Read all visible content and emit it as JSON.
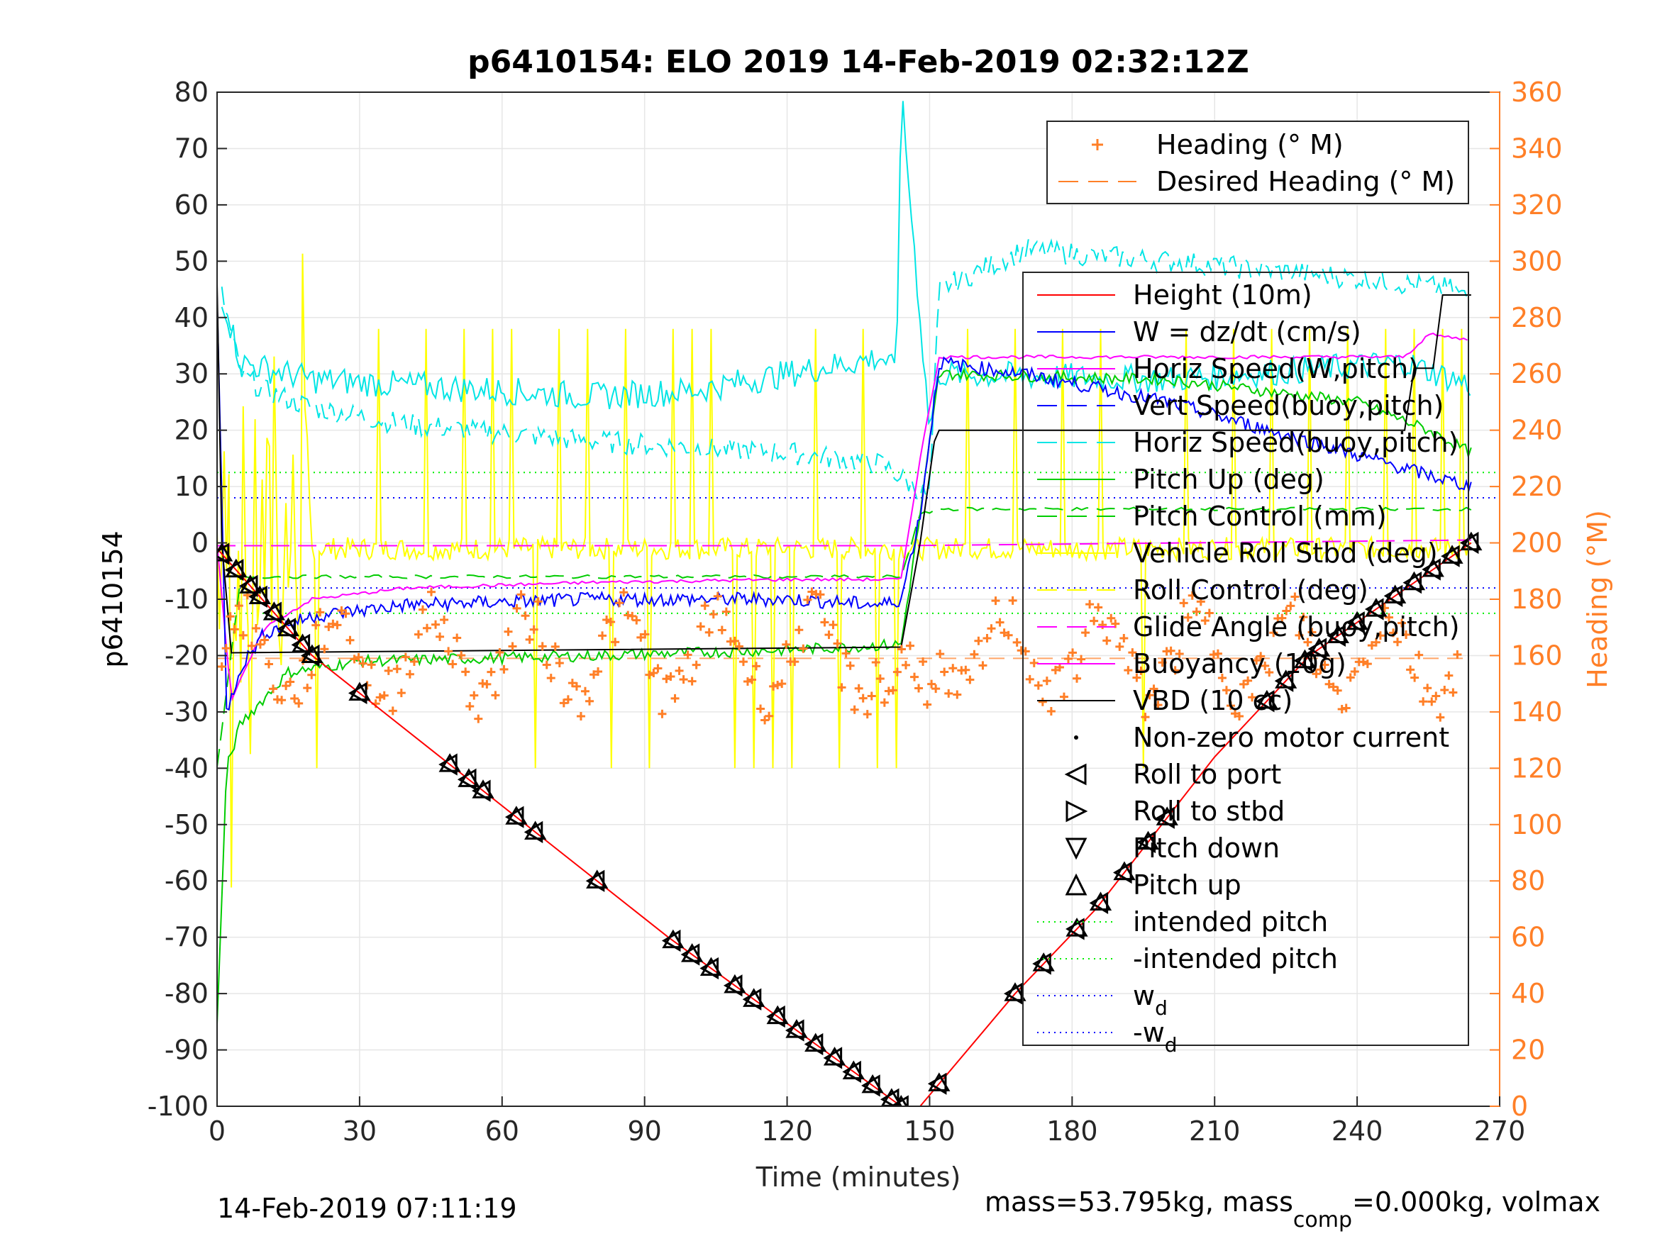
{
  "figure": {
    "title": "p6410154: ELO 2019 14-Feb-2019 02:32:12Z",
    "xlabel": "Time (minutes)",
    "ylabel_left": "p6410154",
    "ylabel_right": "Heading (°M)",
    "footer_left": "14-Feb-2019 07:11:19",
    "footer_right_a": "mass=53.795kg, mass",
    "footer_right_sub": "comp",
    "footer_right_b": "=0.000kg, volmax"
  },
  "chart_data": {
    "type": "line",
    "xlim": [
      0,
      270
    ],
    "ylim_left": [
      -100,
      80
    ],
    "ylim_right": [
      0,
      360
    ],
    "xticks": [
      0,
      30,
      60,
      90,
      120,
      150,
      180,
      210,
      240,
      270
    ],
    "yticks_left": [
      80,
      70,
      60,
      50,
      40,
      30,
      20,
      10,
      0,
      -10,
      -20,
      -30,
      -40,
      -50,
      -60,
      -70,
      -80,
      -90,
      -100
    ],
    "yticks_right": [
      360,
      340,
      320,
      300,
      280,
      260,
      240,
      220,
      200,
      180,
      160,
      140,
      120,
      100,
      80,
      60,
      40,
      20,
      0
    ],
    "grid": true,
    "legend_top": [
      {
        "label": "Heading (° M)",
        "color": "#ff7f27",
        "style": "plus"
      },
      {
        "label": "Desired Heading (° M)",
        "color": "#ff7f27",
        "style": "dash"
      }
    ],
    "legend_main": [
      {
        "label": "Height (10m)",
        "color": "#ff0000",
        "style": "solid"
      },
      {
        "label": "W = dz/dt (cm/s)",
        "color": "#0000ff",
        "style": "solid"
      },
      {
        "label": "Horiz Speed(W,pitch)",
        "color": "#ff00ff",
        "style": "solid"
      },
      {
        "label": "Vert Speed(buoy,pitch)",
        "color": "#0000ff",
        "style": "dash"
      },
      {
        "label": "Horiz Speed(buoy,pitch)",
        "color": "#00e5e5",
        "style": "dash"
      },
      {
        "label": "Pitch Up (deg)",
        "color": "#00cc00",
        "style": "solid"
      },
      {
        "label": "Pitch Control (mm)",
        "color": "#00cc00",
        "style": "dash"
      },
      {
        "label": "Vehicle Roll Stbd (deg)",
        "color": "#ffff00",
        "style": "solid"
      },
      {
        "label": "Roll Control (deg)",
        "color": "#ffff00",
        "style": "dash"
      },
      {
        "label": "Glide Angle (buoy,pitch)",
        "color": "#ff00ff",
        "style": "dash"
      },
      {
        "label": "Buoyancy (10g)",
        "color": "#ff00ff",
        "style": "solid2"
      },
      {
        "label": "VBD (10 cc)",
        "color": "#000000",
        "style": "solid"
      },
      {
        "label": "Non-zero motor current",
        "color": "#000000",
        "style": "dot"
      },
      {
        "label": "Roll to port",
        "color": "#000000",
        "style": "tri-left"
      },
      {
        "label": "Roll to stbd",
        "color": "#000000",
        "style": "tri-right"
      },
      {
        "label": "Pitch down",
        "color": "#000000",
        "style": "tri-down"
      },
      {
        "label": "Pitch up",
        "color": "#000000",
        "style": "tri-up"
      },
      {
        "label": "intended pitch",
        "color": "#00ee00",
        "style": "dotted"
      },
      {
        "label": "-intended pitch",
        "color": "#00ee00",
        "style": "dotted"
      },
      {
        "label": "w",
        "sub": "d",
        "color": "#0000ff",
        "style": "dotted"
      },
      {
        "label": "-w",
        "sub": "d",
        "color": "#0000ff",
        "style": "dotted"
      }
    ],
    "series": {
      "height": {
        "x": [
          0,
          20,
          95,
          144,
          148,
          168,
          185,
          210,
          230,
          264
        ],
        "y": [
          -1,
          -20,
          -70,
          -100,
          -100,
          -80,
          -65,
          -38,
          -20,
          0
        ]
      },
      "w": {
        "x": [
          0,
          2,
          5,
          10,
          20,
          40,
          80,
          120,
          140,
          144,
          148,
          152,
          170,
          200,
          230,
          255,
          264
        ],
        "y": [
          45,
          -30,
          -22,
          -16,
          -13,
          -11,
          -10,
          -10,
          -11,
          -10,
          5,
          32,
          30,
          25,
          18,
          12,
          10
        ]
      },
      "horiz_speed_w": {
        "x": [
          0,
          3,
          10,
          20,
          40,
          80,
          120,
          144,
          148,
          152,
          200,
          250,
          255,
          264
        ],
        "y": [
          0,
          -28,
          -15,
          -10,
          -8,
          -7,
          -6.5,
          -6.5,
          15,
          33,
          33,
          33,
          37,
          36
        ]
      },
      "horiz_speed_buoy": {
        "x": [
          1,
          5,
          10,
          20,
          40,
          80,
          120,
          140,
          150,
          152,
          170,
          200,
          240,
          260,
          264
        ],
        "y": [
          44,
          30,
          27,
          24,
          21,
          18,
          16,
          14,
          8,
          45,
          52,
          50,
          47,
          45,
          43
        ]
      },
      "pitch_up": {
        "x": [
          0,
          2,
          5,
          15,
          30,
          80,
          120,
          144,
          148,
          152,
          200,
          240,
          255,
          264
        ],
        "y": [
          -86,
          -40,
          -32,
          -23,
          -21,
          -20,
          -19,
          -18,
          5,
          30,
          29,
          25,
          20,
          16
        ]
      },
      "buoyancy": {
        "x": [
          0,
          144,
          264
        ],
        "y": [
          -0.5,
          -0.5,
          0.5
        ]
      },
      "vbd": {
        "x": [
          0,
          1,
          3,
          144,
          148,
          151,
          152,
          250,
          252,
          256,
          258,
          264
        ],
        "y": [
          46,
          0,
          -19.5,
          -18.5,
          0,
          18,
          20,
          20,
          31,
          31,
          44,
          44
        ]
      },
      "heading_mean_deg": 160,
      "desired_heading_deg": 159
    },
    "reference_lines": {
      "intended_pitch": 12.5,
      "neg_intended_pitch": -12.5,
      "w_d": 8,
      "neg_w_d": -8
    },
    "markers": {
      "descent_x": [
        1,
        4,
        7,
        9,
        12,
        15,
        18,
        20,
        30,
        49,
        53,
        56,
        63,
        67,
        80,
        96,
        100,
        104,
        109,
        113,
        118,
        122,
        126,
        130,
        134,
        138,
        142,
        144
      ],
      "ascent_x": [
        152,
        168,
        174,
        181,
        186,
        191,
        196,
        200,
        221,
        225,
        229,
        232,
        236,
        240,
        244,
        248,
        252,
        256,
        260,
        264
      ]
    }
  }
}
